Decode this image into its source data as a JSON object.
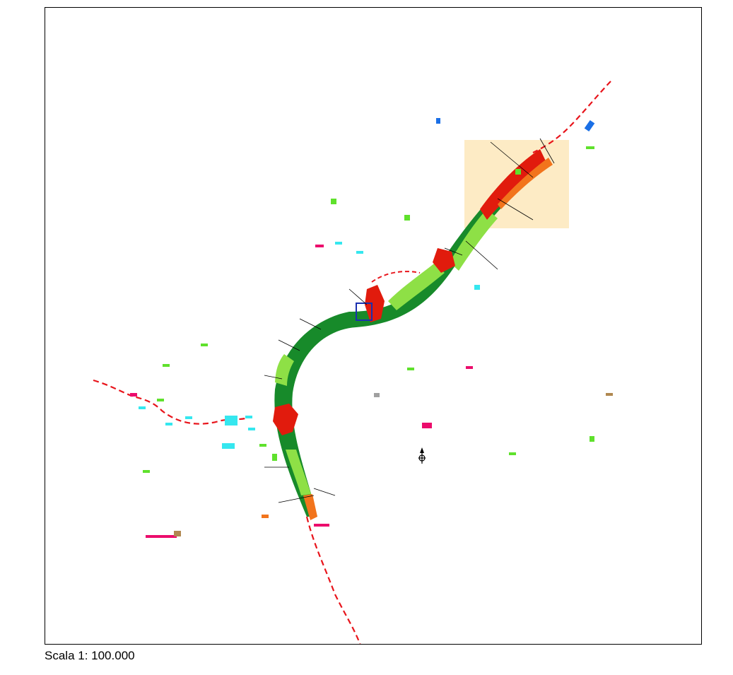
{
  "scale": {
    "label": "Scala 1: 100.000"
  },
  "colors": {
    "boundary": "#e8141b",
    "channel_dark": "#178a2a",
    "channel_light": "#8ee046",
    "risk_high": "#e11b0d",
    "risk_mid": "#f2741c",
    "study_area": "#fdebc5",
    "cyan": "#35e7ef",
    "magenta": "#ec0c6c",
    "lime": "#5fe12c",
    "blue": "#1a6fe6",
    "brown": "#b08850"
  },
  "icons": {
    "north_arrow": "north-arrow-icon"
  }
}
